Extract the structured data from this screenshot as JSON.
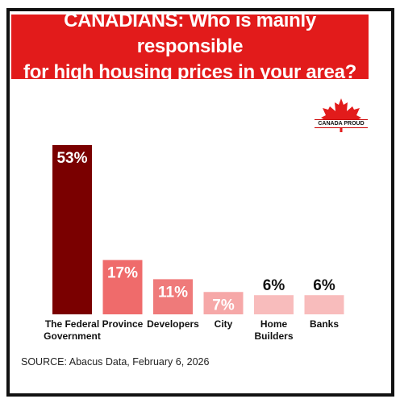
{
  "title": "CANADIANS: Who is mainly responsible\nfor high housing prices in your area?",
  "logo": {
    "text": "CANADA PROUD",
    "icon": "maple-leaf-icon",
    "color": "#e21b1b"
  },
  "colors": {
    "banner": "#e21b1b",
    "bars": [
      "#7a0000",
      "#ef6b6b",
      "#ef7a7a",
      "#f6a8a8",
      "#f8bcbc",
      "#f8bcbc"
    ],
    "value_text_light": "#ffffff",
    "value_text_dark": "#111111"
  },
  "chart_data": {
    "type": "bar",
    "categories": [
      "The Federal Government",
      "Province",
      "Developers",
      "City",
      "Home Builders",
      "Banks"
    ],
    "category_lines": [
      [
        "The Federal",
        "Government"
      ],
      [
        "Province"
      ],
      [
        "Developers"
      ],
      [
        "City"
      ],
      [
        "Home",
        "Builders"
      ],
      [
        "Banks"
      ]
    ],
    "values": [
      53,
      17,
      11,
      7,
      6,
      6
    ],
    "value_labels": [
      "53%",
      "17%",
      "11%",
      "7%",
      "6%",
      "6%"
    ],
    "value_label_inside": [
      true,
      true,
      true,
      true,
      false,
      false
    ],
    "ylim": [
      0,
      55
    ],
    "grid": false,
    "legend": "none"
  },
  "source": "SOURCE: Abacus Data, February 6, 2026"
}
